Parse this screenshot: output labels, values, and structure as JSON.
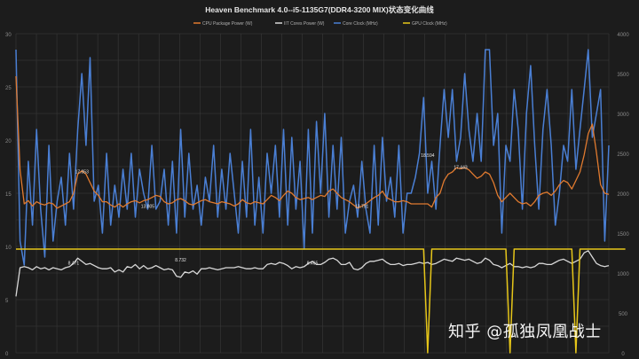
{
  "chart_data": {
    "type": "line",
    "title": "Heaven Benchmark 4.0--i5-1135G7(DDR4-3200 MIX)状态变化曲线",
    "legend_position": "top",
    "grid": true,
    "colors": {
      "background": "#1c1c1c",
      "grid": "#3a3a3a",
      "axis_text": "#8a8a8a",
      "title": "#e6e6e6"
    },
    "y_left": {
      "min": 0,
      "max": 30,
      "ticks": [
        0,
        5,
        10,
        15,
        20,
        25,
        30
      ]
    },
    "y_right": {
      "min": 0,
      "max": 4000,
      "ticks": [
        0,
        500,
        1000,
        1500,
        2000,
        2500,
        3000,
        3500,
        4000
      ]
    },
    "x": {
      "count": 145
    },
    "series": [
      {
        "name": "CPU Package Power (W)",
        "color": "#e07a2f",
        "axis": "left",
        "values": [
          26.0,
          17.2,
          14.0,
          14.3,
          13.8,
          14.2,
          14.0,
          13.9,
          14.1,
          14.0,
          13.6,
          13.8,
          14.0,
          14.2,
          15.0,
          16.8,
          17.1,
          16.8,
          16.0,
          15.2,
          14.8,
          14.2,
          14.2,
          13.9,
          13.7,
          14.0,
          13.7,
          14.0,
          14.2,
          14.3,
          14.1,
          14.3,
          14.4,
          14.6,
          14.8,
          14.7,
          14.2,
          14.0,
          14.1,
          14.4,
          14.5,
          14.3,
          14.0,
          13.9,
          14.1,
          14.3,
          14.4,
          14.2,
          14.1,
          14.0,
          14.2,
          14.1,
          14.0,
          13.8,
          14.0,
          14.4,
          14.1,
          14.0,
          14.2,
          14.1,
          14.0,
          14.4,
          14.8,
          14.6,
          14.3,
          14.8,
          15.2,
          15.0,
          14.6,
          14.4,
          14.5,
          14.6,
          14.4,
          14.6,
          14.8,
          14.7,
          15.2,
          15.4,
          15.0,
          14.6,
          14.4,
          14.2,
          13.9,
          13.6,
          13.8,
          14.0,
          14.3,
          14.6,
          14.8,
          15.2,
          14.6,
          14.4,
          14.2,
          14.2,
          14.3,
          14.2,
          14.0,
          14.0,
          14.0,
          14.0,
          14.0,
          13.7,
          14.6,
          15.0,
          16.2,
          16.8,
          17.0,
          17.4,
          17.3,
          17.4,
          17.2,
          16.8,
          16.4,
          16.6,
          17.0,
          16.8,
          16.0,
          14.8,
          14.2,
          14.6,
          15.0,
          14.6,
          14.2,
          14.0,
          14.1,
          13.8,
          14.2,
          14.8,
          15.0,
          15.1,
          14.8,
          15.2,
          15.8,
          16.2,
          16.0,
          15.4,
          16.2,
          17.0,
          18.6,
          20.6,
          21.5,
          18.8,
          15.8,
          15.0,
          14.9
        ]
      },
      {
        "name": "IIT Cores Power (W)",
        "color": "#d8d8d8",
        "axis": "left",
        "values": [
          5.3,
          8.0,
          8.1,
          8.0,
          7.8,
          8.1,
          7.9,
          8.0,
          7.8,
          8.0,
          7.9,
          7.8,
          8.0,
          8.1,
          8.4,
          8.9,
          8.6,
          8.3,
          8.4,
          8.2,
          8.0,
          7.9,
          7.9,
          8.0,
          7.6,
          7.8,
          7.6,
          8.1,
          8.0,
          8.3,
          7.9,
          8.2,
          7.9,
          8.0,
          8.2,
          8.0,
          7.8,
          7.9,
          7.8,
          7.2,
          7.1,
          7.6,
          7.5,
          7.7,
          7.4,
          7.9,
          7.9,
          8.0,
          7.9,
          7.8,
          7.9,
          8.0,
          8.0,
          8.0,
          8.1,
          8.0,
          7.9,
          7.9,
          8.0,
          7.9,
          7.9,
          8.3,
          8.4,
          8.3,
          8.5,
          8.4,
          8.2,
          7.9,
          8.1,
          8.0,
          8.1,
          8.4,
          8.6,
          8.3,
          8.3,
          8.5,
          8.8,
          8.9,
          8.7,
          8.3,
          8.3,
          8.5,
          7.9,
          7.8,
          8.0,
          8.4,
          8.6,
          8.6,
          8.7,
          8.8,
          8.5,
          8.3,
          8.3,
          8.4,
          8.2,
          8.3,
          8.3,
          8.4,
          8.5,
          8.4,
          8.5,
          8.3,
          8.4,
          8.6,
          8.8,
          8.7,
          8.6,
          8.9,
          8.8,
          8.7,
          8.8,
          8.6,
          8.4,
          8.5,
          8.9,
          8.7,
          8.3,
          8.2,
          8.0,
          8.2,
          8.4,
          8.1,
          8.1,
          8.0,
          8.1,
          8.0,
          8.1,
          8.4,
          8.4,
          8.3,
          8.3,
          8.5,
          8.7,
          8.8,
          8.6,
          8.4,
          8.6,
          8.8,
          9.4,
          9.6,
          9.0,
          8.4,
          8.2,
          8.1,
          8.2
        ]
      },
      {
        "name": "Core Clock (MHz)",
        "color": "#4a7fd4",
        "axis": "right",
        "values": [
          3800,
          1400,
          1100,
          2400,
          1600,
          2800,
          1800,
          1200,
          2600,
          1400,
          1900,
          2200,
          1600,
          2500,
          1800,
          2800,
          3500,
          2600,
          3700,
          1900,
          2100,
          1500,
          2500,
          1600,
          2100,
          1700,
          2300,
          1800,
          2500,
          1700,
          2300,
          2000,
          1800,
          2600,
          1800,
          1900,
          2300,
          1600,
          2400,
          1500,
          2800,
          1700,
          2500,
          1800,
          2100,
          1600,
          2200,
          1900,
          2600,
          1700,
          2300,
          1800,
          2500,
          2000,
          1500,
          2400,
          1700,
          2800,
          1600,
          2200,
          1500,
          2500,
          2000,
          2600,
          1700,
          2800,
          1600,
          2700,
          1800,
          2400,
          1300,
          2800,
          1500,
          2900,
          2000,
          3000,
          1700,
          2600,
          1800,
          2700,
          1500,
          1900,
          2100,
          1700,
          2400,
          1800,
          1500,
          2600,
          1600,
          2700,
          1900,
          2200,
          1700,
          2600,
          1500,
          2000,
          2000,
          2200,
          2500,
          3200,
          2000,
          2400,
          1800,
          2600,
          3300,
          2700,
          3300,
          2400,
          2700,
          3500,
          2800,
          2400,
          3000,
          2400,
          3800,
          3800,
          2600,
          3000,
          1500,
          2600,
          2400,
          3300,
          2800,
          1800,
          3000,
          3600,
          2600,
          1800,
          2800,
          3300,
          2600,
          1600,
          2000,
          2600,
          2400,
          3300,
          2300,
          2800,
          3300,
          3800,
          2700,
          3000,
          3300,
          1400,
          2600
        ]
      },
      {
        "name": "GPU Clock (MHz)",
        "color": "#e6c619",
        "axis": "right",
        "values": [
          1300,
          1300,
          1300,
          1300,
          1300,
          1300,
          1300,
          1300,
          1300,
          1300,
          1300,
          1300,
          1300,
          1300,
          1300,
          1300,
          1300,
          1300,
          1300,
          1300,
          1300,
          1300,
          1300,
          1300,
          1300,
          1300,
          1300,
          1300,
          1300,
          1300,
          1300,
          1300,
          1300,
          1300,
          1300,
          1300,
          1300,
          1300,
          1300,
          1300,
          1300,
          1300,
          1300,
          1300,
          1300,
          1300,
          1300,
          1300,
          1300,
          1300,
          1300,
          1300,
          1300,
          1300,
          1300,
          1300,
          1300,
          1300,
          1300,
          1300,
          1300,
          1300,
          1300,
          1300,
          1300,
          1300,
          1300,
          1300,
          1300,
          1300,
          1300,
          1300,
          1300,
          1300,
          1300,
          1300,
          1300,
          1300,
          1300,
          1300,
          1300,
          1300,
          1300,
          1300,
          1300,
          1300,
          1300,
          1300,
          1300,
          1300,
          1300,
          1300,
          1300,
          1300,
          1300,
          1300,
          1300,
          1300,
          1300,
          1300,
          0,
          1300,
          1300,
          1300,
          1300,
          1300,
          1300,
          1300,
          1300,
          1300,
          1300,
          1300,
          1300,
          1300,
          1300,
          1300,
          1300,
          1300,
          1300,
          1300,
          0,
          1300,
          1300,
          1300,
          1300,
          1300,
          1300,
          1300,
          1300,
          1300,
          1300,
          1300,
          1300,
          1300,
          1300,
          1300,
          0,
          1300,
          1300,
          1300,
          1300,
          1300,
          1300,
          1300,
          1300,
          1300,
          1300,
          1300,
          1300
        ]
      }
    ],
    "annotations": [
      {
        "label": "17.053",
        "x": 16,
        "y": 17.053,
        "color": "#e6e6e6"
      },
      {
        "label": "13.805",
        "x": 32,
        "y": 13.805,
        "color": "#e6e6e6"
      },
      {
        "label": "8.471",
        "x": 14,
        "y": 8.471,
        "color": "#e6e6e6"
      },
      {
        "label": "8.732",
        "x": 40,
        "y": 8.732,
        "color": "#e6e6e6"
      },
      {
        "label": "8.465",
        "x": 72,
        "y": 8.465,
        "color": "#e6e6e6"
      },
      {
        "label": "13.791",
        "x": 84,
        "y": 13.791,
        "color": "#e6e6e6"
      },
      {
        "label": "18.594",
        "x": 100,
        "y": 18.594,
        "color": "#e6e6e6"
      },
      {
        "label": "17.443",
        "x": 108,
        "y": 17.443,
        "color": "#e6e6e6"
      }
    ]
  },
  "watermark": "知乎 @孤独凤凰战士"
}
